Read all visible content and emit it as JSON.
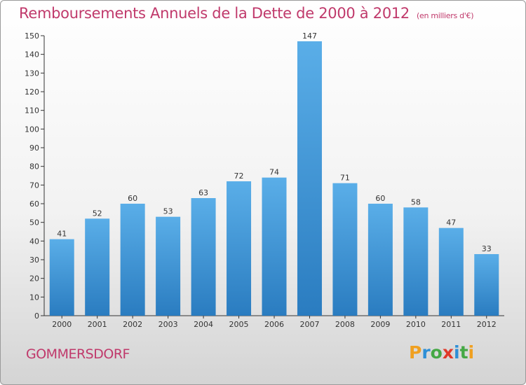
{
  "title": "Remboursements Annuels de la Dette de 2000 à 2012",
  "unit_note": "(en milliers d'€)",
  "town": "GOMMERSDORF",
  "logo": {
    "text": "Proxiti",
    "letters": [
      {
        "ch": "P",
        "color": "#f0a020"
      },
      {
        "ch": "r",
        "color": "#2e8fd6"
      },
      {
        "ch": "o",
        "color": "#45a845"
      },
      {
        "ch": "x",
        "color": "#e03a2a"
      },
      {
        "ch": "i",
        "color": "#2e8fd6"
      },
      {
        "ch": "t",
        "color": "#45a845"
      },
      {
        "ch": "i",
        "color": "#f0a020"
      }
    ]
  },
  "colors": {
    "accent": "#c0396b",
    "bar_top": "#5aaee8",
    "bar_bottom": "#2a7cc0",
    "text": "#333333"
  },
  "chart_data": {
    "type": "bar",
    "categories": [
      "2000",
      "2001",
      "2002",
      "2003",
      "2004",
      "2005",
      "2006",
      "2007",
      "2008",
      "2009",
      "2010",
      "2011",
      "2012"
    ],
    "values": [
      41,
      52,
      60,
      53,
      63,
      72,
      74,
      147,
      71,
      60,
      58,
      47,
      33
    ],
    "ylim": [
      0,
      150
    ],
    "yticks": [
      0,
      10,
      20,
      30,
      40,
      50,
      60,
      70,
      80,
      90,
      100,
      110,
      120,
      130,
      140,
      150
    ],
    "grid": false,
    "legend": "none"
  }
}
